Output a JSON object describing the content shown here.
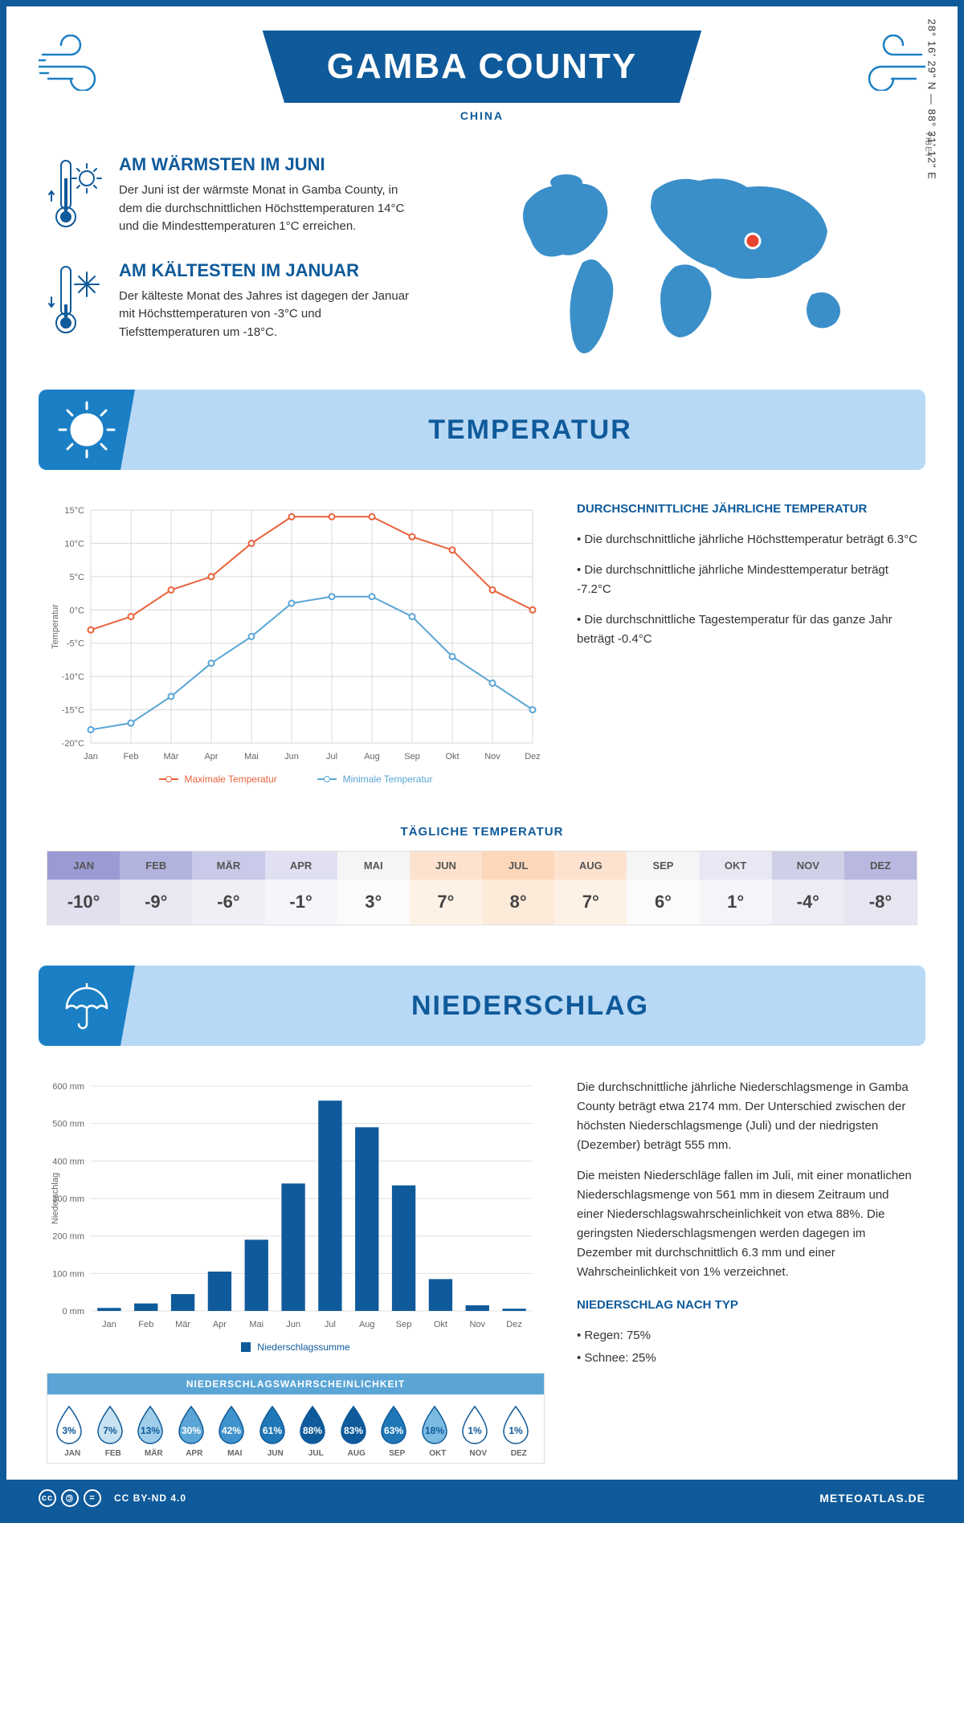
{
  "colors": {
    "brand": "#0f5a9a",
    "brand_light": "#1a7fc4",
    "banner_bg": "#b8d9f5",
    "max_temp": "#e8623b",
    "min_temp": "#5aa5d6",
    "bar": "#0f5a9a",
    "grid": "#d0d0d0",
    "text": "#333333"
  },
  "header": {
    "title": "GAMBA COUNTY",
    "subtitle": "CHINA"
  },
  "intro": {
    "warm": {
      "heading": "AM WÄRMSTEN IM JUNI",
      "body": "Der Juni ist der wärmste Monat in Gamba County, in dem die durchschnittlichen Höchsttemperaturen 14°C und die Mindesttemperaturen 1°C erreichen."
    },
    "cold": {
      "heading": "AM KÄLTESTEN IM JANUAR",
      "body": "Der kälteste Monat des Jahres ist dagegen der Januar mit Höchsttemperaturen von -3°C und Tiefsttemperaturen um -18°C."
    },
    "coords": "28° 16' 29\" N — 88° 31' 12\" E",
    "region": "TIBET"
  },
  "temperature": {
    "banner": "TEMPERATUR",
    "chart": {
      "type": "line",
      "months": [
        "Jan",
        "Feb",
        "Mär",
        "Apr",
        "Mai",
        "Jun",
        "Jul",
        "Aug",
        "Sep",
        "Okt",
        "Nov",
        "Dez"
      ],
      "max": [
        -3,
        -1,
        3,
        5,
        10,
        14,
        14,
        14,
        11,
        9,
        3,
        0
      ],
      "min": [
        -18,
        -17,
        -13,
        -8,
        -4,
        1,
        2,
        2,
        -1,
        -7,
        -11,
        -15
      ],
      "ylim": [
        -20,
        15
      ],
      "ytick_step": 5,
      "ylabel": "Temperatur",
      "legend_max": "Maximale Temperatur",
      "legend_min": "Minimale Temperatur",
      "grid_color": "#d8d8d8",
      "line_width": 2,
      "marker": "circle"
    },
    "side": {
      "heading": "DURCHSCHNITTLICHE JÄHRLICHE TEMPERATUR",
      "bullets": [
        "• Die durchschnittliche jährliche Höchsttemperatur beträgt 6.3°C",
        "• Die durchschnittliche jährliche Mindesttemperatur beträgt -7.2°C",
        "• Die durchschnittliche Tagestemperatur für das ganze Jahr beträgt -0.4°C"
      ]
    },
    "daily": {
      "title": "TÄGLICHE TEMPERATUR",
      "months": [
        "JAN",
        "FEB",
        "MÄR",
        "APR",
        "MAI",
        "JUN",
        "JUL",
        "AUG",
        "SEP",
        "OKT",
        "NOV",
        "DEZ"
      ],
      "values": [
        "-10°",
        "-9°",
        "-6°",
        "-1°",
        "3°",
        "7°",
        "8°",
        "7°",
        "6°",
        "1°",
        "-4°",
        "-8°"
      ],
      "head_colors": [
        "#9b9bd4",
        "#b2b2df",
        "#c9c9e9",
        "#e0e0f2",
        "#f5f5f5",
        "#fde3cf",
        "#fcd7ba",
        "#fde3cf",
        "#f5f5f5",
        "#e8e8f5",
        "#cfcfe8",
        "#b8b8e0"
      ],
      "val_colors": [
        "#e0e0ef",
        "#e8e8f3",
        "#efeff6",
        "#f6f6fa",
        "#fbfbfb",
        "#fef2e6",
        "#fdebd9",
        "#fef2e6",
        "#fbfbfb",
        "#f4f4f9",
        "#ececf5",
        "#e6e6f2"
      ]
    }
  },
  "precip": {
    "banner": "NIEDERSCHLAG",
    "chart": {
      "type": "bar",
      "months": [
        "Jan",
        "Feb",
        "Mär",
        "Apr",
        "Mai",
        "Jun",
        "Jul",
        "Aug",
        "Sep",
        "Okt",
        "Nov",
        "Dez"
      ],
      "values": [
        8,
        20,
        45,
        105,
        190,
        340,
        561,
        490,
        335,
        85,
        15,
        6
      ],
      "ylim": [
        0,
        600
      ],
      "ytick_step": 100,
      "ylabel": "Niederschlag",
      "bar_color": "#0f5a9a",
      "legend": "Niederschlagssumme",
      "unit": "mm"
    },
    "side": {
      "p1": "Die durchschnittliche jährliche Niederschlagsmenge in Gamba County beträgt etwa 2174 mm. Der Unterschied zwischen der höchsten Niederschlagsmenge (Juli) und der niedrigsten (Dezember) beträgt 555 mm.",
      "p2": "Die meisten Niederschläge fallen im Juli, mit einer monatlichen Niederschlagsmenge von 561 mm in diesem Zeitraum und einer Niederschlagswahrscheinlichkeit von etwa 88%. Die geringsten Niederschlagsmengen werden dagegen im Dezember mit durchschnittlich 6.3 mm und einer Wahrscheinlichkeit von 1% verzeichnet.",
      "type_heading": "NIEDERSCHLAG NACH TYP",
      "type_items": [
        "• Regen: 75%",
        "• Schnee: 25%"
      ]
    },
    "prob": {
      "title": "NIEDERSCHLAGSWAHRSCHEINLICHKEIT",
      "months": [
        "JAN",
        "FEB",
        "MÄR",
        "APR",
        "MAI",
        "JUN",
        "JUL",
        "AUG",
        "SEP",
        "OKT",
        "NOV",
        "DEZ"
      ],
      "values": [
        "3%",
        "7%",
        "13%",
        "30%",
        "42%",
        "61%",
        "88%",
        "83%",
        "63%",
        "18%",
        "1%",
        "1%"
      ],
      "fills": [
        "#ffffff",
        "#c9e2f2",
        "#a0cde9",
        "#5aa5d6",
        "#3f92cb",
        "#1f77b6",
        "#0f5a9a",
        "#0f5a9a",
        "#1f77b6",
        "#7bbbe2",
        "#ffffff",
        "#ffffff"
      ],
      "text_colors": [
        "#0f5a9a",
        "#0f5a9a",
        "#0f5a9a",
        "#fff",
        "#fff",
        "#fff",
        "#fff",
        "#fff",
        "#fff",
        "#0f5a9a",
        "#0f5a9a",
        "#0f5a9a"
      ]
    }
  },
  "footer": {
    "license": "CC BY-ND 4.0",
    "site": "METEOATLAS.DE"
  }
}
